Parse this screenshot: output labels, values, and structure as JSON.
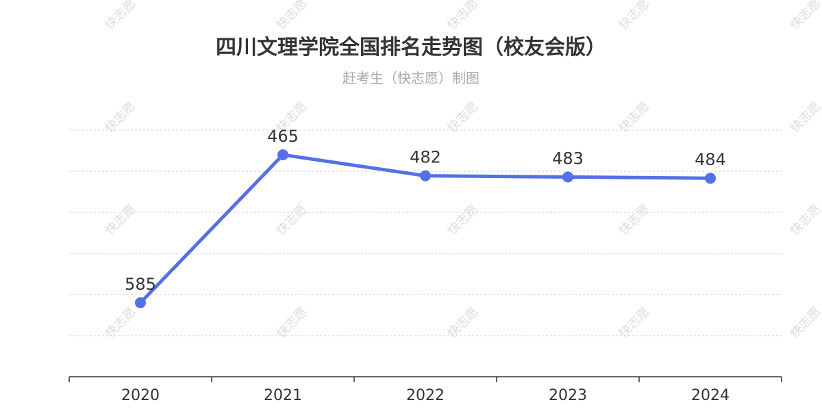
{
  "chart_data": {
    "type": "line",
    "title": "四川文理学院全国排名走势图（校友会版）",
    "subtitle": "赶考生（快志愿）制图",
    "watermark": "快志愿",
    "categories": [
      "2020",
      "2021",
      "2022",
      "2023",
      "2024"
    ],
    "series": [
      {
        "values": [
          585,
          465,
          482,
          483,
          484
        ],
        "color": "#5470e6"
      }
    ],
    "y_inverted": true,
    "ylim": [
      445,
      645
    ],
    "grid": true,
    "grid_style": "dashed",
    "xlabel": "",
    "ylabel": ""
  }
}
